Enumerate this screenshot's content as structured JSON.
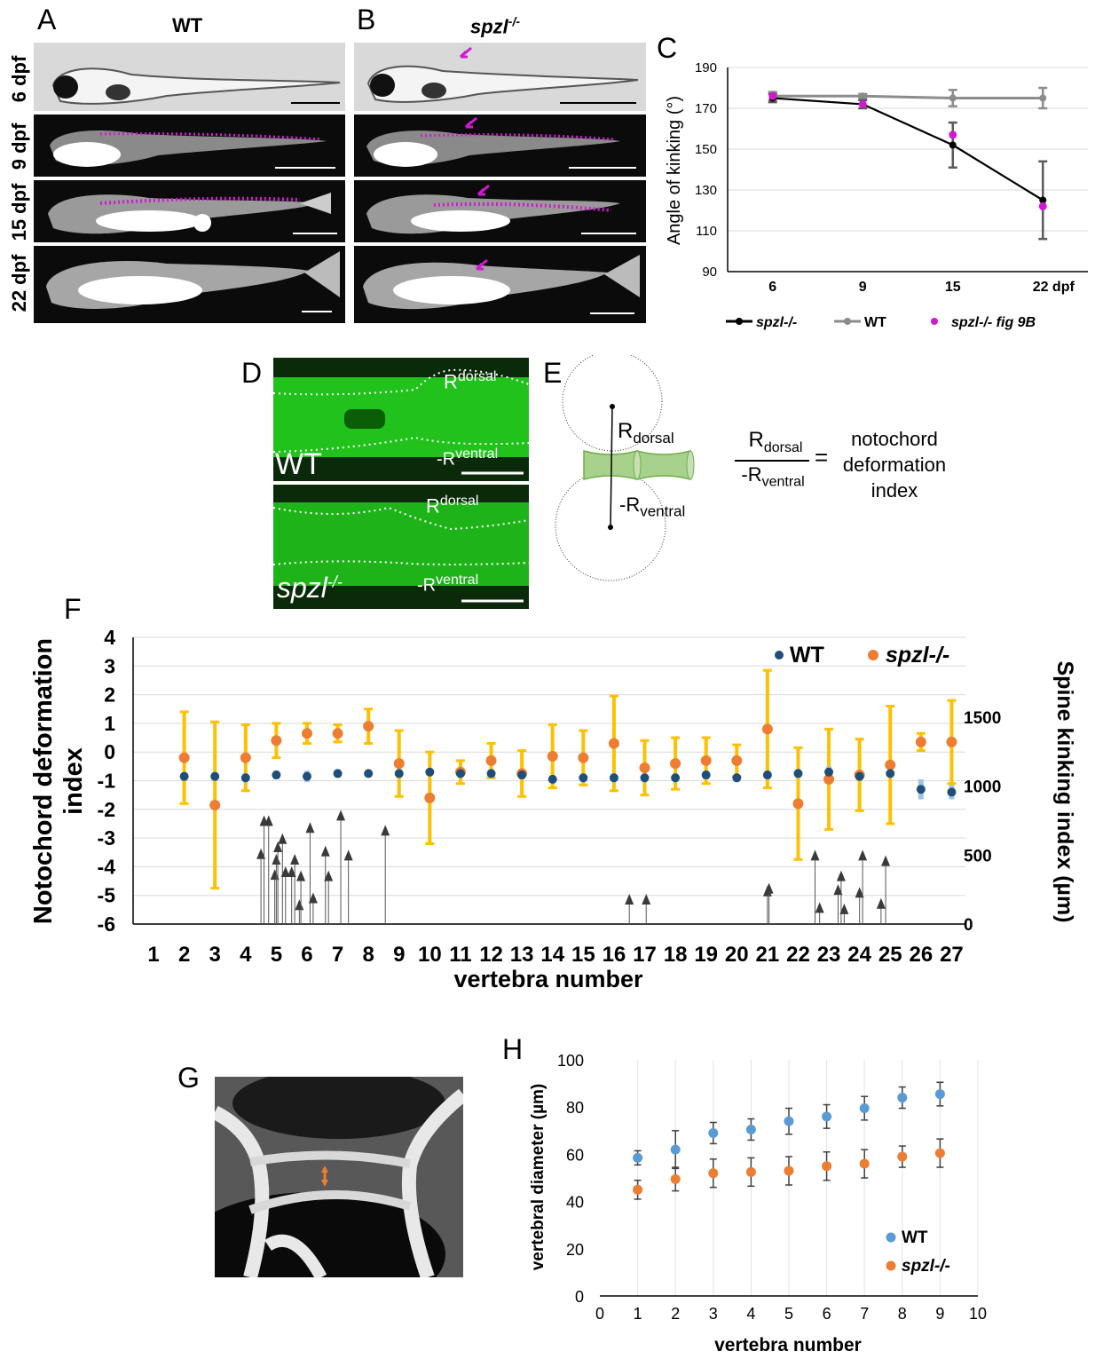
{
  "panels": {
    "a": "A",
    "b": "B",
    "c": "C",
    "d": "D",
    "e": "E",
    "f": "F",
    "g": "G",
    "h": "H"
  },
  "montage": {
    "col_wt": "WT",
    "col_mut": "spzl",
    "col_mut_sup": "-/-",
    "rows": [
      "6 dpf",
      "9 dpf",
      "15 dpf",
      "22 dpf"
    ]
  },
  "panel_d": {
    "wt_label": "WT",
    "mut_label": "spzl",
    "mut_sup": "-/-",
    "r": "R",
    "dorsal": "dorsal",
    "minus_r": "-R",
    "ventral": "ventral"
  },
  "panel_e": {
    "r_dorsal": "R",
    "dorsal_sub": "dorsal",
    "r_ventral": "-R",
    "ventral_sub": "ventral",
    "frac_num": "R",
    "frac_num_sub": "dorsal",
    "frac_den": "-R",
    "frac_den_sub": "ventral",
    "equals": "=",
    "result_lines": [
      "notochord",
      "deformation",
      "index"
    ]
  },
  "colors": {
    "wt_gray": "#8c8c8c",
    "mut_black": "#000000",
    "magenta": "#d01ad0",
    "orange_point": "#ed7d31",
    "gold_bar": "#ffc000",
    "wt_blue_f": "#1f4e79",
    "wt_blue_h": "#5b9bd5",
    "arrow_gray": "#3a3a3a"
  },
  "chart_data": [
    {
      "id": "C",
      "type": "line",
      "title": "",
      "ylabel": "Angle of kinking (°)",
      "categories": [
        "6",
        "9",
        "15",
        "22 dpf"
      ],
      "ylim": [
        90,
        190
      ],
      "yticks": [
        90,
        110,
        130,
        150,
        170,
        190
      ],
      "grid": true,
      "legend_position": "bottom",
      "series": [
        {
          "name": "spzl-/-",
          "values": [
            175,
            172,
            152,
            125
          ],
          "errors": [
            2,
            2,
            11,
            19
          ]
        },
        {
          "name": "WT",
          "values": [
            176,
            176,
            175,
            175
          ],
          "errors": [
            2,
            1,
            4,
            5
          ]
        },
        {
          "name": "spzl-/- fig 9B",
          "values": [
            176,
            172,
            157,
            122
          ],
          "errors": [
            0,
            0,
            0,
            0
          ]
        }
      ]
    },
    {
      "id": "F",
      "type": "scatter",
      "title": "",
      "xlabel": "vertebra number",
      "ylabel": "Notochord deformation index",
      "y2label": "Spine kinking index (µm)",
      "x": [
        1,
        2,
        3,
        4,
        5,
        6,
        7,
        8,
        9,
        10,
        11,
        12,
        13,
        14,
        15,
        16,
        17,
        18,
        19,
        20,
        21,
        22,
        23,
        24,
        25,
        26,
        27
      ],
      "ylim": [
        -6,
        4
      ],
      "yticks": [
        -6,
        -5,
        -4,
        -3,
        -2,
        -1,
        0,
        1,
        2,
        3,
        4
      ],
      "y2lim": [
        0,
        2080
      ],
      "y2ticks": [
        0,
        500,
        1000,
        1500
      ],
      "grid": true,
      "legend_position": "top-right",
      "series": [
        {
          "name": "WT",
          "x": [
            2,
            3,
            4,
            5,
            6,
            7,
            8,
            9,
            10,
            11,
            12,
            13,
            14,
            15,
            16,
            17,
            18,
            19,
            20,
            21,
            22,
            23,
            24,
            25,
            26,
            27
          ],
          "values": [
            -0.85,
            -0.85,
            -0.9,
            -0.8,
            -0.85,
            -0.75,
            -0.75,
            -0.75,
            -0.7,
            -0.75,
            -0.75,
            -0.8,
            -0.95,
            -0.9,
            -0.9,
            -0.9,
            -0.9,
            -0.8,
            -0.9,
            -0.8,
            -0.75,
            -0.7,
            -0.85,
            -0.75,
            -1.3,
            -1.4
          ],
          "errors": [
            0.15,
            0.15,
            0.15,
            0.15,
            0.2,
            0.15,
            0.1,
            0.15,
            0.1,
            0.15,
            0.15,
            0.15,
            0.15,
            0.15,
            0.15,
            0.15,
            0.15,
            0.15,
            0.15,
            0.15,
            0.15,
            0.2,
            0.15,
            0.1,
            0.35,
            0.25
          ]
        },
        {
          "name": "spzl-/-",
          "x": [
            2,
            3,
            4,
            5,
            6,
            7,
            8,
            9,
            10,
            11,
            12,
            13,
            14,
            15,
            16,
            17,
            18,
            19,
            20,
            21,
            22,
            23,
            24,
            25,
            26,
            27
          ],
          "values": [
            -0.2,
            -1.85,
            -0.2,
            0.4,
            0.65,
            0.65,
            0.9,
            -0.4,
            -1.6,
            -0.7,
            -0.3,
            -0.75,
            -0.15,
            -0.2,
            0.3,
            -0.55,
            -0.4,
            -0.3,
            -0.3,
            0.8,
            -1.8,
            -0.95,
            -0.8,
            -0.45,
            0.35,
            0.35
          ],
          "errors": [
            1.6,
            2.9,
            1.15,
            0.6,
            0.35,
            0.3,
            0.6,
            1.15,
            1.6,
            0.4,
            0.6,
            0.8,
            1.1,
            0.95,
            1.65,
            0.95,
            0.9,
            0.8,
            0.55,
            2.05,
            1.95,
            1.75,
            1.25,
            2.05,
            0.3,
            1.45
          ]
        },
        {
          "name": "spine kinking",
          "axis": "y2",
          "x": [
            4.5,
            4.6,
            4.75,
            4.95,
            5.0,
            5.05,
            5.2,
            5.3,
            5.5,
            5.6,
            5.75,
            5.8,
            6.1,
            6.2,
            6.6,
            6.7,
            7.1,
            7.35,
            8.55,
            16.5,
            17.05,
            21.0,
            21.05,
            22.55,
            22.7,
            23.3,
            23.4,
            23.5,
            24.0,
            24.1,
            24.7,
            24.85
          ],
          "values": [
            510,
            750,
            750,
            360,
            470,
            560,
            620,
            380,
            380,
            470,
            140,
            350,
            700,
            190,
            530,
            350,
            790,
            500,
            680,
            180,
            180,
            240,
            260,
            500,
            120,
            250,
            350,
            110,
            230,
            500,
            150,
            460
          ]
        }
      ],
      "ticks_x": [
        "1",
        "2",
        "3",
        "4",
        "5",
        "6",
        "7",
        "8",
        "9",
        "10",
        "11",
        "12",
        "13",
        "14",
        "15",
        "16",
        "17",
        "18",
        "19",
        "20",
        "21",
        "22",
        "23",
        "24",
        "25",
        "26",
        "27"
      ]
    },
    {
      "id": "H",
      "type": "scatter",
      "title": "",
      "xlabel": "vertebra number",
      "ylabel": "vertebral diameter (µm)",
      "x": [
        1,
        2,
        3,
        4,
        5,
        6,
        7,
        8,
        9
      ],
      "xlim": [
        0,
        10
      ],
      "xticks": [
        0,
        1,
        2,
        3,
        4,
        5,
        6,
        7,
        8,
        9,
        10
      ],
      "ylim": [
        0,
        100
      ],
      "yticks": [
        0,
        20,
        40,
        60,
        80,
        100
      ],
      "grid": true,
      "legend_position": "bottom-right",
      "series": [
        {
          "name": "WT",
          "values": [
            58.5,
            62,
            69,
            70.5,
            74,
            76,
            79.5,
            84,
            85.5
          ],
          "errors": [
            3,
            8,
            4.5,
            4.5,
            5.5,
            5,
            5,
            4.5,
            5
          ]
        },
        {
          "name": "spzl-/-",
          "values": [
            45,
            49.5,
            52,
            52.5,
            53,
            55,
            56,
            59,
            60.5
          ],
          "errors": [
            4,
            5,
            6,
            6,
            6,
            6,
            6,
            4.5,
            6
          ]
        }
      ]
    }
  ]
}
